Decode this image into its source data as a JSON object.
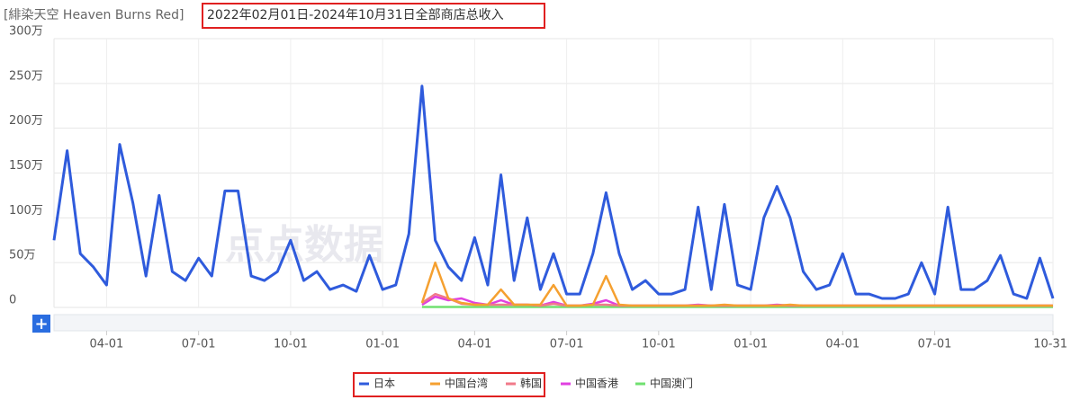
{
  "chart_data": {
    "type": "line",
    "title": "[緋染天空 Heaven Burns Red]",
    "subtitle": "2022年02月01日-2024年10月31日全部商店总收入",
    "watermark": "点点数据",
    "range_button": "+",
    "categories": [
      null,
      null,
      null,
      null,
      "04-01",
      null,
      null,
      null,
      null,
      null,
      null,
      "07-01",
      null,
      null,
      null,
      null,
      null,
      null,
      "10-01",
      null,
      null,
      null,
      null,
      null,
      null,
      "01-01",
      null,
      null,
      null,
      null,
      null,
      null,
      "04-01",
      null,
      null,
      null,
      null,
      null,
      null,
      "07-01",
      null,
      null,
      null,
      null,
      null,
      null,
      "10-01",
      null,
      null,
      null,
      null,
      null,
      null,
      "01-01",
      null,
      null,
      null,
      null,
      null,
      null,
      "04-01",
      null,
      null,
      null,
      null,
      null,
      null,
      "07-01",
      null,
      null,
      null,
      null,
      null,
      null,
      null,
      null,
      "10-31"
    ],
    "ylim": [
      0,
      300
    ],
    "yticks": [
      0,
      {
        "value": 50,
        "label": "50万"
      },
      {
        "value": 100,
        "label": "100万"
      },
      {
        "value": 150,
        "label": "150万"
      },
      {
        "value": 200,
        "label": "200万"
      },
      {
        "value": 250,
        "label": "250万"
      },
      {
        "value": 300,
        "label": "300万"
      }
    ],
    "grid": true,
    "legend": "bottom",
    "series": [
      {
        "name": "日本",
        "color": "#2f5bdc",
        "values": [
          75,
          175,
          60,
          45,
          25,
          182,
          117,
          35,
          125,
          40,
          30,
          55,
          35,
          130,
          130,
          35,
          30,
          40,
          75,
          30,
          40,
          20,
          25,
          18,
          58,
          20,
          25,
          82,
          247,
          75,
          45,
          30,
          78,
          25,
          148,
          30,
          100,
          20,
          60,
          15,
          15,
          60,
          128,
          60,
          20,
          30,
          15,
          15,
          20,
          112,
          20,
          115,
          25,
          20,
          100,
          135,
          100,
          40,
          20,
          25,
          60,
          15,
          15,
          10,
          10,
          15,
          50,
          15,
          112,
          20,
          20,
          30,
          58,
          15,
          10,
          55,
          10
        ]
      },
      {
        "name": "中国台湾",
        "color": "#f5a030",
        "values": [
          null,
          null,
          null,
          null,
          null,
          null,
          null,
          null,
          null,
          null,
          null,
          null,
          null,
          null,
          null,
          null,
          null,
          null,
          null,
          null,
          null,
          null,
          null,
          null,
          null,
          null,
          null,
          null,
          5,
          50,
          10,
          5,
          3,
          3,
          20,
          3,
          3,
          3,
          25,
          2,
          2,
          3,
          35,
          3,
          2,
          2,
          2,
          2,
          2,
          2,
          2,
          3,
          2,
          2,
          2,
          2,
          3,
          2,
          2,
          2,
          2,
          2,
          2,
          2,
          2,
          2,
          2,
          2,
          2,
          2,
          2,
          2,
          2,
          2,
          2,
          2,
          2
        ]
      },
      {
        "name": "韩国",
        "color": "#f07a8a",
        "values": [
          null,
          null,
          null,
          null,
          null,
          null,
          null,
          null,
          null,
          null,
          null,
          null,
          null,
          null,
          null,
          null,
          null,
          null,
          null,
          null,
          null,
          null,
          null,
          null,
          null,
          null,
          null,
          null,
          5,
          15,
          10,
          4,
          3,
          3,
          3,
          3,
          3,
          2,
          4,
          2,
          2,
          3,
          3,
          2,
          2,
          2,
          2,
          2,
          2,
          2,
          2,
          2,
          2,
          2,
          2,
          2,
          2,
          2,
          2,
          2,
          2,
          2,
          2,
          2,
          2,
          2,
          2,
          2,
          2,
          2,
          2,
          2,
          2,
          2,
          2,
          2,
          2
        ]
      },
      {
        "name": "中国香港",
        "color": "#e040e0",
        "values": [
          null,
          null,
          null,
          null,
          null,
          null,
          null,
          null,
          null,
          null,
          null,
          null,
          null,
          null,
          null,
          null,
          null,
          null,
          null,
          null,
          null,
          null,
          null,
          null,
          null,
          null,
          null,
          null,
          3,
          12,
          8,
          10,
          5,
          3,
          8,
          3,
          3,
          2,
          6,
          2,
          2,
          4,
          8,
          2,
          2,
          2,
          2,
          2,
          2,
          3,
          2,
          2,
          2,
          2,
          2,
          3,
          2,
          2,
          2,
          2,
          2,
          2,
          2,
          2,
          2,
          2,
          2,
          2,
          2,
          2,
          2,
          2,
          2,
          2,
          2,
          2,
          2
        ]
      },
      {
        "name": "中国澳门",
        "color": "#70e070",
        "values": [
          null,
          null,
          null,
          null,
          null,
          null,
          null,
          null,
          null,
          null,
          null,
          null,
          null,
          null,
          null,
          null,
          null,
          null,
          null,
          null,
          null,
          null,
          null,
          null,
          null,
          null,
          null,
          null,
          0.5,
          0.5,
          0.5,
          0.5,
          0.5,
          0.5,
          0.5,
          0.5,
          0.5,
          0.5,
          0.5,
          0.5,
          0.5,
          0.5,
          0.5,
          0.5,
          0.5,
          0.5,
          0.5,
          0.5,
          0.5,
          0.5,
          0.5,
          0.5,
          0.5,
          0.5,
          0.5,
          0.5,
          0.5,
          0.5,
          0.5,
          0.5,
          0.5,
          0.5,
          0.5,
          0.5,
          0.5,
          0.5,
          0.5,
          0.5,
          0.5,
          0.5,
          0.5,
          0.5,
          0.5,
          0.5,
          0.5,
          0.5,
          0.5
        ]
      }
    ]
  }
}
